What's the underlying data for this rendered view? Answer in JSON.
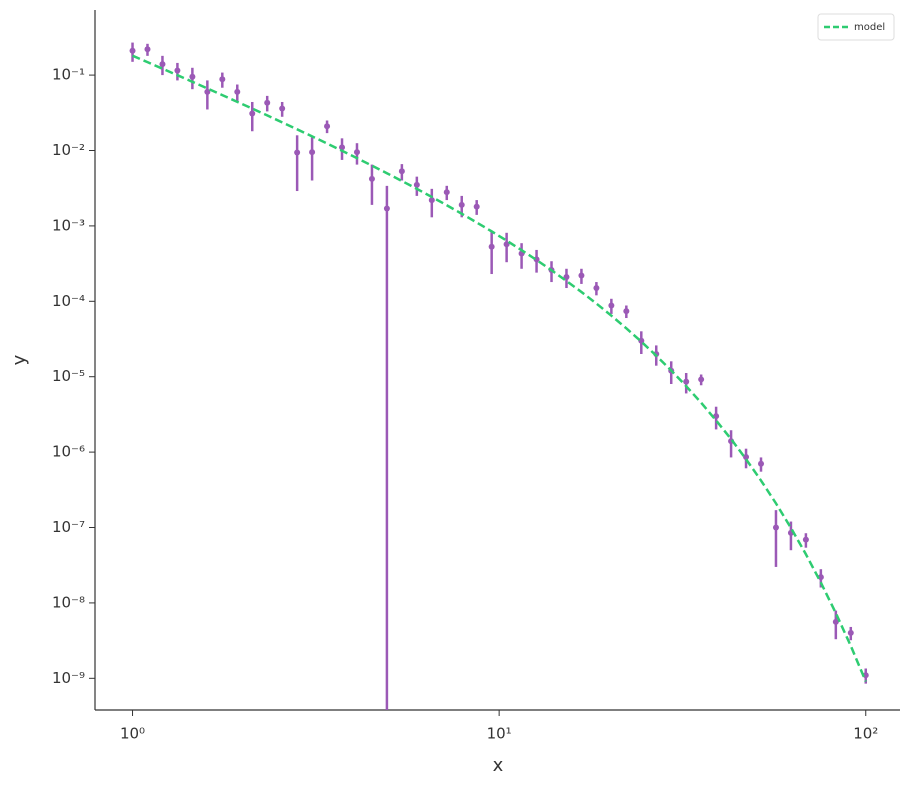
{
  "chart_data": {
    "type": "scatter",
    "xlabel": "x",
    "ylabel": "y",
    "xscale": "log",
    "yscale": "log",
    "x": [
      1,
      1.0985,
      1.2068,
      1.3257,
      1.4563,
      1.5999,
      1.7575,
      1.9307,
      2.121,
      2.33,
      2.5595,
      2.8118,
      3.0888,
      3.3932,
      3.7276,
      4.0949,
      4.4984,
      4.9417,
      5.4287,
      5.9636,
      6.5513,
      7.1969,
      7.906,
      8.6851,
      9.541,
      10.481,
      11.514,
      12.649,
      13.895,
      15.264,
      16.768,
      18.421,
      20.236,
      22.23,
      24.421,
      26.827,
      29.471,
      32.375,
      35.565,
      39.069,
      42.919,
      47.149,
      51.795,
      56.899,
      62.506,
      68.665,
      75.431,
      82.864,
      91.03,
      100
    ],
    "series": [
      {
        "color": "#9b59b6",
        "values": [
          0.21,
          0.22,
          0.14,
          0.115,
          0.095,
          0.06,
          0.088,
          0.06,
          0.031,
          0.043,
          0.036,
          0.0094,
          0.0095,
          0.021,
          0.011,
          0.0095,
          0.0042,
          0.0017,
          0.0053,
          0.0035,
          0.0022,
          0.0028,
          0.0019,
          0.0018,
          0.00053,
          0.00057,
          0.00043,
          0.00036,
          0.00026,
          0.00021,
          0.00022,
          0.00015,
          8.8e-05,
          7.4e-05,
          3e-05,
          2e-05,
          1.2e-05,
          8.6e-06,
          9.2e-06,
          3e-06,
          1.4e-06,
          8.6e-07,
          7e-07,
          1e-07,
          8.5e-08,
          6.9e-08,
          2.2e-08,
          5.6e-09,
          4e-09,
          1.1e-09
        ],
        "errors": [
          0.06,
          0.04,
          0.04,
          0.03,
          0.03,
          0.025,
          0.02,
          0.015,
          0.013,
          0.01,
          0.008,
          0.0065,
          0.0055,
          0.004,
          0.0035,
          0.003,
          0.0023,
          0.0017,
          0.0013,
          0.001,
          0.0009,
          0.0006,
          0.0006,
          0.0004,
          0.0003,
          0.00024,
          0.00016,
          0.00012,
          8e-05,
          6e-05,
          5e-05,
          3e-05,
          2e-05,
          1.4e-05,
          1e-05,
          6e-06,
          4e-06,
          2.6e-06,
          1.5e-06,
          1e-06,
          5.5e-07,
          2.5e-07,
          1.5e-07,
          7e-08,
          3.5e-08,
          1.5e-08,
          6e-09,
          2.3e-09,
          8e-10,
          2.5e-10
        ]
      },
      {
        "name": "model",
        "color": "#2ecc71",
        "linestyle": "dashed",
        "values": [
          0.181,
          0.1485,
          0.1217,
          0.0997,
          0.0815,
          0.0666,
          0.0543,
          0.0442,
          0.036,
          0.0292,
          0.0236,
          0.0191,
          0.0154,
          0.0124,
          0.00991,
          0.00792,
          0.0063,
          0.005,
          0.00394,
          0.0031,
          0.00242,
          0.00188,
          0.00145,
          0.00111,
          0.000846,
          0.000638,
          0.000477,
          0.000353,
          0.000258,
          0.000186,
          0.000133,
          9.34e-05,
          6.45e-05,
          4.38e-05,
          2.92e-05,
          1.9e-05,
          1.21e-05,
          7.49e-06,
          4.51e-06,
          2.63e-06,
          1.49e-06,
          8.06e-07,
          4.2e-07,
          2.09e-07,
          9.88e-08,
          4.42e-08,
          1.86e-08,
          7.33e-09,
          2.69e-09,
          9.08e-10
        ]
      }
    ],
    "xlim": [
      0.79,
      124
    ],
    "ylim": [
      3.8e-10,
      0.73
    ],
    "xticks": [
      {
        "value": 1,
        "label": "10⁰"
      },
      {
        "value": 10,
        "label": "10¹"
      },
      {
        "value": 100,
        "label": "10²"
      }
    ],
    "yticks": [
      {
        "value": 1e-09,
        "label": "10⁻⁹"
      },
      {
        "value": 1e-08,
        "label": "10⁻⁸"
      },
      {
        "value": 1e-07,
        "label": "10⁻⁷"
      },
      {
        "value": 1e-06,
        "label": "10⁻⁶"
      },
      {
        "value": 1e-05,
        "label": "10⁻⁵"
      },
      {
        "value": 0.0001,
        "label": "10⁻⁴"
      },
      {
        "value": 0.001,
        "label": "10⁻³"
      },
      {
        "value": 0.01,
        "label": "10⁻²"
      },
      {
        "value": 0.1,
        "label": "10⁻¹"
      }
    ],
    "grid": false,
    "legend": "upper right"
  }
}
